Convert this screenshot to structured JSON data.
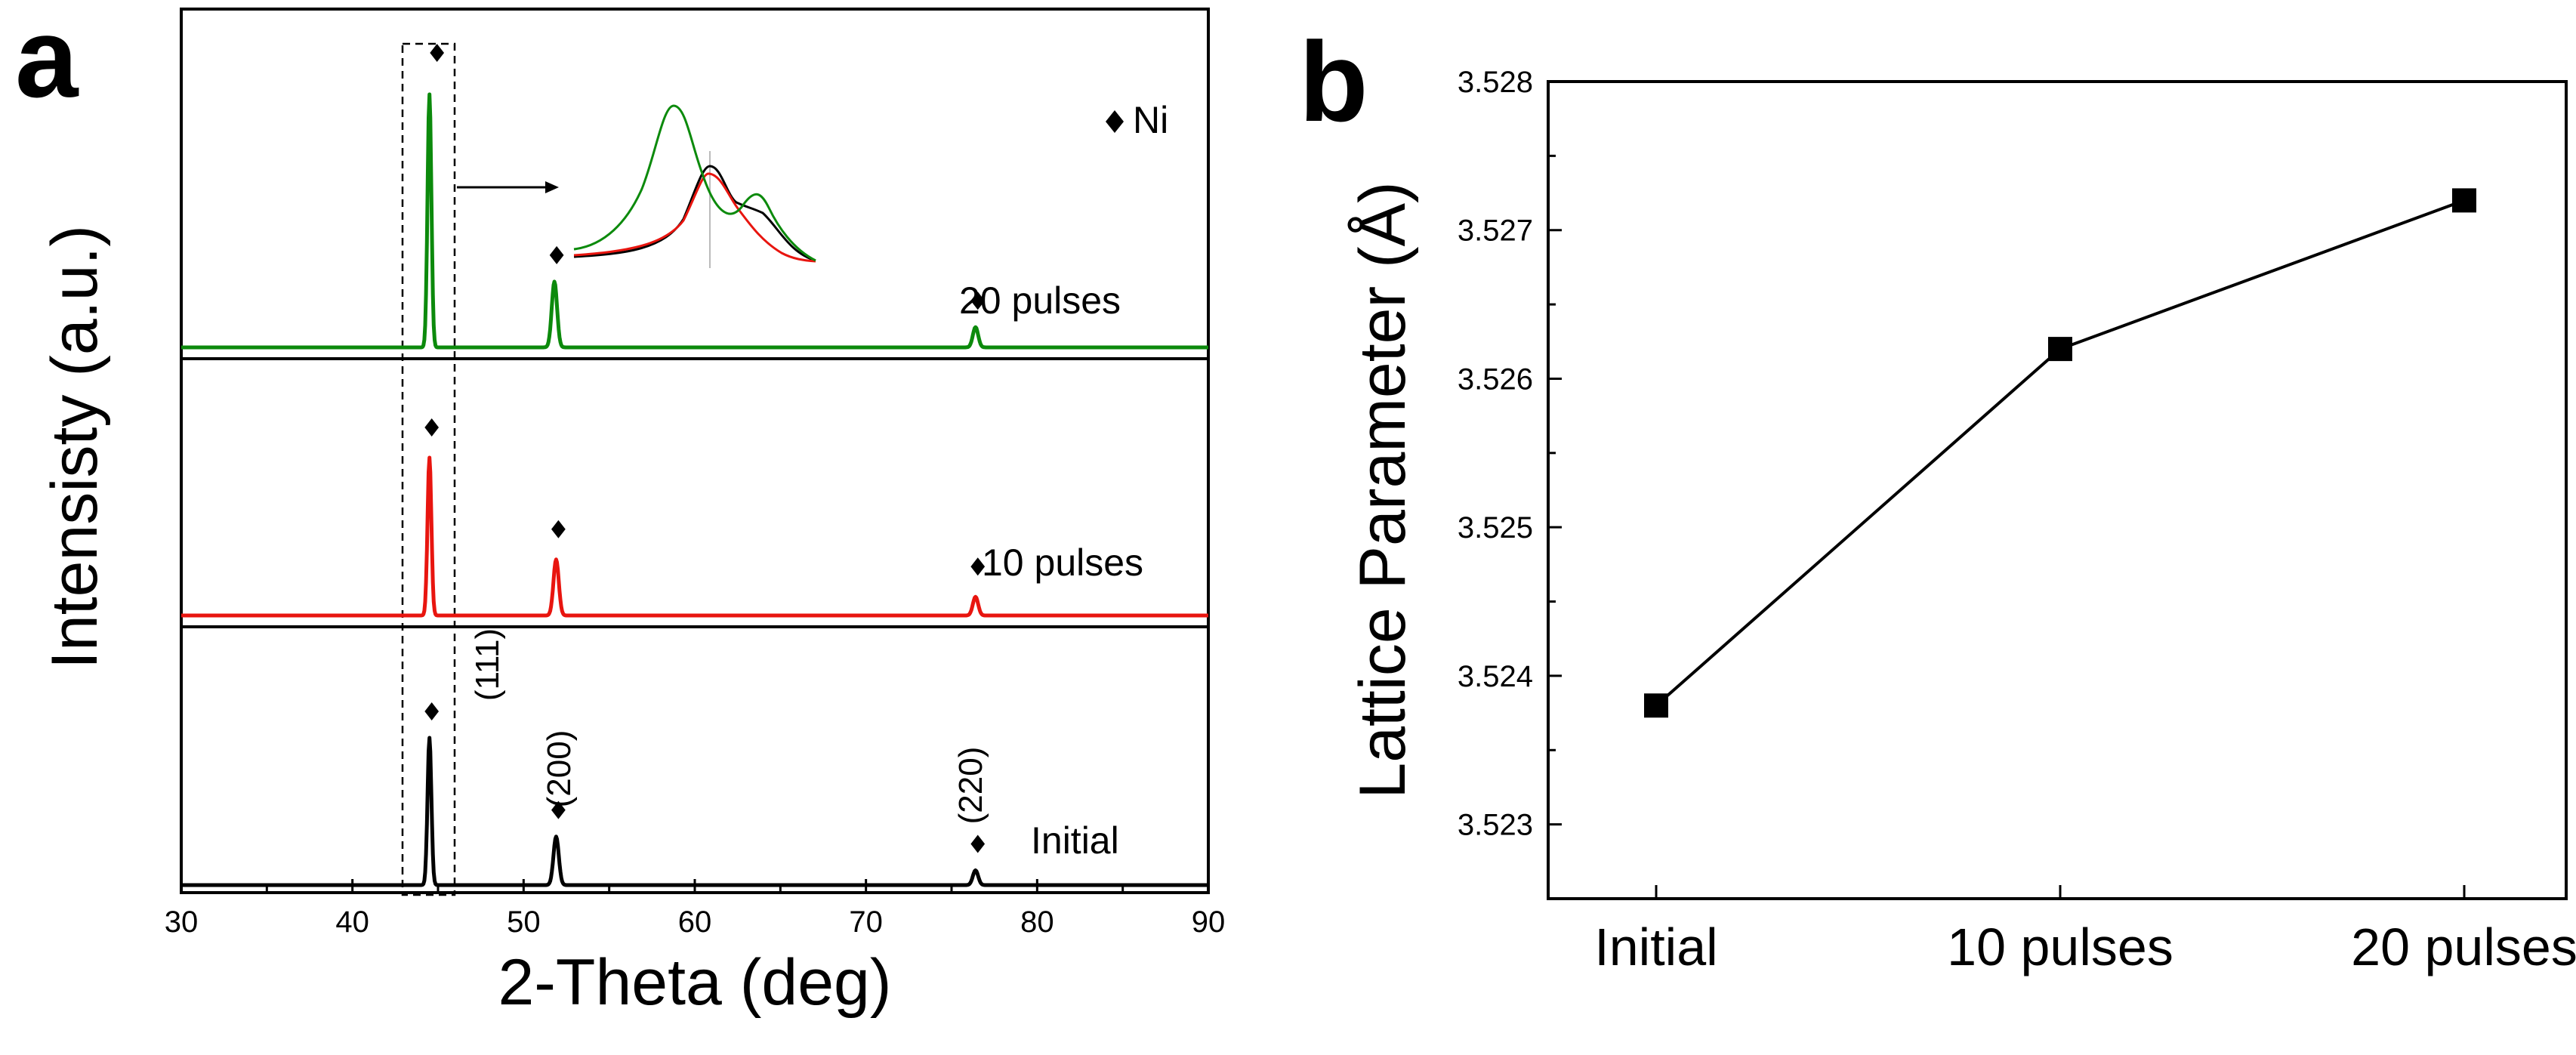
{
  "panel_labels": {
    "a": "a",
    "b": "b"
  },
  "colors": {
    "initial": "#000000",
    "p10": "#e8150f",
    "p20": "#0c8a0c",
    "axis": "#000000"
  },
  "chart_data": [
    {
      "panel": "a",
      "type": "line",
      "title": "",
      "xlabel": "2-Theta (deg)",
      "ylabel": "Intensisty (a.u.)",
      "xlim": [
        30,
        90
      ],
      "xticks": [
        30,
        40,
        50,
        60,
        70,
        80,
        90
      ],
      "x_tick_labels": [
        "30",
        "40",
        "50",
        "60",
        "70",
        "80",
        "90"
      ],
      "legend": [
        {
          "marker": "diamond",
          "label": "Ni"
        }
      ],
      "series": [
        {
          "name": "20 pulses",
          "label": "20 pulses",
          "color": "#0c8a0c",
          "peaks": [
            {
              "x": 44.5,
              "height": 1.0,
              "label": ""
            },
            {
              "x": 51.8,
              "height": 0.26,
              "label": ""
            },
            {
              "x": 76.4,
              "height": 0.08,
              "label": ""
            }
          ]
        },
        {
          "name": "10 pulses",
          "label": "10 pulses",
          "color": "#e8150f",
          "peaks": [
            {
              "x": 44.5,
              "height": 0.76,
              "label": ""
            },
            {
              "x": 51.9,
              "height": 0.27,
              "label": ""
            },
            {
              "x": 76.4,
              "height": 0.09,
              "label": ""
            }
          ]
        },
        {
          "name": "Initial",
          "label": "Initial",
          "color": "#000000",
          "peaks": [
            {
              "x": 44.5,
              "height": 1.0,
              "label": "(111)"
            },
            {
              "x": 51.9,
              "height": 0.33,
              "label": "(200)"
            },
            {
              "x": 76.4,
              "height": 0.1,
              "label": "(220)"
            }
          ]
        }
      ],
      "inset": {
        "description_text": "",
        "curves": [
          "20 pulses",
          "10 pulses",
          "Initial"
        ]
      },
      "annotations": [
        "(111)",
        "(200)",
        "(220)"
      ]
    },
    {
      "panel": "b",
      "type": "line",
      "title": "",
      "xlabel": "",
      "ylabel": "Lattice Parameter (Å)",
      "categories": [
        "Initial",
        "10 pulses",
        "20 pulses"
      ],
      "values": [
        3.5238,
        3.5262,
        3.5272
      ],
      "ylim": [
        3.5225,
        3.528
      ],
      "yticks": [
        3.523,
        3.524,
        3.525,
        3.526,
        3.527,
        3.528
      ],
      "y_tick_labels": [
        "3.523",
        "3.524",
        "3.525",
        "3.526",
        "3.527",
        "3.528"
      ],
      "marker": "square",
      "color": "#000000"
    }
  ]
}
